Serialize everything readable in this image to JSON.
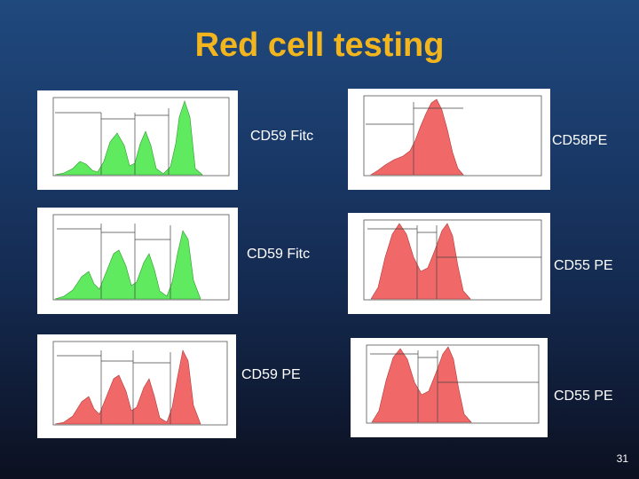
{
  "slide": {
    "title": "Red cell testing",
    "page_number": "31"
  },
  "colors": {
    "title": "#f2b51d",
    "fitc_fill": "#5fea5f",
    "pe_fill": "#f06868"
  },
  "panels": [
    {
      "label": "CD59 Fitc",
      "fill": "#5fea5f"
    },
    {
      "label": "CD58PE",
      "fill": "#f06868"
    },
    {
      "label": "CD59 Fitc",
      "fill": "#5fea5f"
    },
    {
      "label": "CD55 PE",
      "fill": "#f06868"
    },
    {
      "label": "CD59 PE",
      "fill": "#f06868"
    },
    {
      "label": "CD55 PE",
      "fill": "#f06868"
    }
  ]
}
